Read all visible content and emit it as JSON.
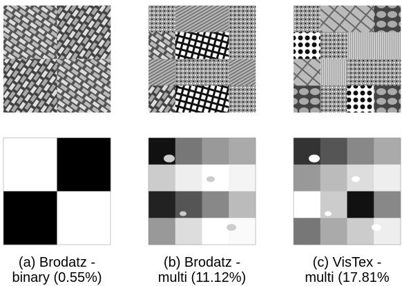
{
  "figure": {
    "panels": [
      {
        "caption_lines": [
          "(a) Brodatz -",
          "binary (0.55%)"
        ]
      },
      {
        "caption_lines": [
          "(b) Brodatz -",
          "multi (11.12%)"
        ]
      },
      {
        "caption_lines": [
          "(c) VisTex -",
          "multi (17.81%"
        ]
      }
    ]
  }
}
